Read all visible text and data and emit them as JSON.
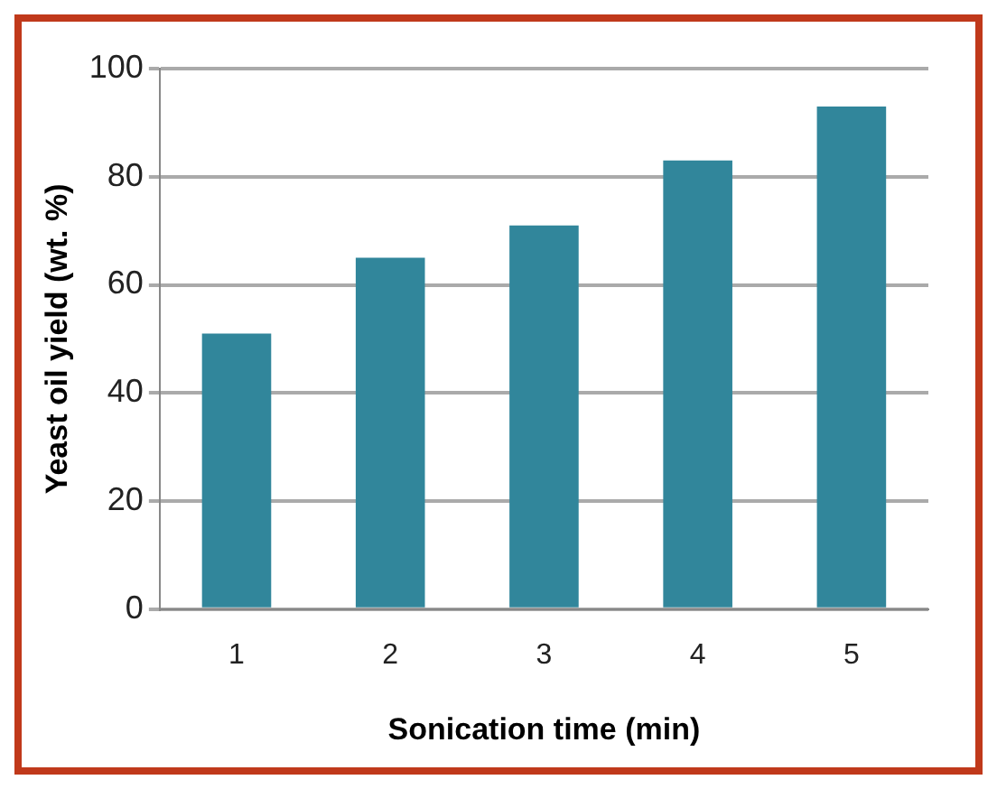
{
  "chart_data": {
    "type": "bar",
    "xlabel": "Sonication time (min)",
    "ylabel": "Yeast oil yield (wt. %)",
    "categories": [
      "1",
      "2",
      "3",
      "4",
      "5"
    ],
    "values": [
      51,
      65,
      71,
      83,
      93
    ],
    "color": "#31869b",
    "ylim": [
      0,
      100
    ],
    "yticks": [
      0,
      20,
      40,
      60,
      80,
      100
    ],
    "grid": "y",
    "legend": false
  }
}
